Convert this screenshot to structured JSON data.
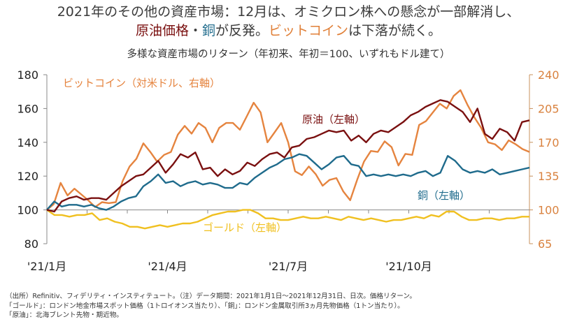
{
  "title": {
    "line1": "2021年のその他の資産市場：12月は、オミクロン株への懸念が一部解消し、",
    "line2_oil": "原油価格",
    "line2_sep": "・",
    "line2_copper": "銅",
    "line2_mid": "が反発。",
    "line2_btc": "ビットコイン",
    "line2_end": "は下落が続く。"
  },
  "subtitle": "多様な資産市場のリターン（年初来、年初＝100、いずれもドル建て）",
  "colors": {
    "oil": "#7a1010",
    "copper": "#1f6b8c",
    "bitcoin": "#e5843f",
    "gold": "#f0c020",
    "axis": "#888888",
    "right_axis": "#c8905c",
    "right_labels": "#d9823f"
  },
  "chart_data": {
    "type": "line",
    "title": "多様な資産市場のリターン（年初来、年初＝100、いずれもドル建て）",
    "x_label": "",
    "x_range": [
      "2021-01-01",
      "2021-12-31"
    ],
    "x_tick_labels": [
      "'21/1月",
      "'21/4月",
      "'21/7月",
      "'21/10月"
    ],
    "x_tick_months": 12,
    "y_left": {
      "label": "",
      "range": [
        80,
        180
      ],
      "ticks": [
        "80",
        "100",
        "120",
        "140",
        "160",
        "180"
      ]
    },
    "y_right": {
      "label": "",
      "range": [
        65,
        240
      ],
      "ticks": [
        "65",
        "100",
        "135",
        "170",
        "205",
        "240"
      ]
    },
    "frequency": "weekly (approximate readings of daily data)",
    "series": [
      {
        "name": "原油（左軸）",
        "key": "oil",
        "axis": "left",
        "label": "原油（左軸）",
        "values": [
          100,
          99,
          105,
          107,
          108,
          106,
          107,
          107,
          106,
          110,
          114,
          117,
          120,
          121,
          125,
          129,
          122,
          127,
          133,
          131,
          134,
          124,
          125,
          120,
          124,
          121,
          123,
          128,
          126,
          130,
          133,
          134,
          131,
          137,
          138,
          142,
          143,
          145,
          147,
          146,
          147,
          141,
          144,
          140,
          145,
          147,
          146,
          149,
          152,
          156,
          158,
          161,
          163,
          165,
          164,
          161,
          158,
          152,
          160,
          145,
          142,
          148,
          146,
          141,
          152,
          153
        ]
      },
      {
        "name": "銅（左軸）",
        "key": "copper",
        "axis": "left",
        "label": "銅（左軸）",
        "values": [
          100,
          105,
          102,
          103,
          103,
          102,
          103,
          101,
          100,
          102,
          105,
          107,
          108,
          114,
          117,
          121,
          116,
          117,
          114,
          116,
          117,
          115,
          116,
          115,
          113,
          113,
          116,
          115,
          119,
          122,
          125,
          127,
          130,
          131,
          133,
          132,
          128,
          124,
          127,
          131,
          132,
          127,
          126,
          120,
          121,
          120,
          121,
          120,
          121,
          120,
          122,
          123,
          120,
          122,
          132,
          129,
          124,
          122,
          123,
          122,
          124,
          121,
          122,
          123,
          124,
          125
        ]
      },
      {
        "name": "ビットコイン（対米ドル、右軸）",
        "key": "bitcoin",
        "axis": "right",
        "label": "ビットコイン（対米ドル、右軸）",
        "values": [
          100,
          106,
          128,
          115,
          122,
          116,
          110,
          103,
          108,
          107,
          108,
          130,
          145,
          153,
          169,
          160,
          150,
          157,
          160,
          178,
          187,
          179,
          190,
          185,
          170,
          185,
          190,
          190,
          183,
          197,
          211,
          201,
          170,
          180,
          190,
          170,
          140,
          136,
          145,
          137,
          125,
          131,
          133,
          119,
          110,
          131,
          150,
          161,
          160,
          171,
          165,
          146,
          158,
          157,
          188,
          192,
          201,
          210,
          205,
          218,
          224,
          209,
          196,
          185,
          170,
          168,
          162,
          172,
          168,
          163,
          160
        ]
      },
      {
        "name": "ゴールド（左軸）",
        "key": "gold",
        "axis": "left",
        "label": "ゴールド（左軸）",
        "values": [
          100,
          97,
          97,
          96,
          97,
          97,
          98,
          94,
          95,
          93,
          92,
          90,
          90,
          89,
          90,
          91,
          90,
          91,
          92,
          92,
          93,
          95,
          97,
          98,
          99,
          99,
          100,
          100,
          98,
          95,
          95,
          94,
          94,
          95,
          96,
          95,
          95,
          96,
          95,
          94,
          96,
          95,
          94,
          95,
          94,
          93,
          94,
          94,
          95,
          96,
          95,
          97,
          96,
          99,
          99,
          96,
          94,
          94,
          95,
          95,
          94,
          95,
          95,
          96,
          96
        ]
      }
    ],
    "annotations": [
      {
        "text": "ビットコイン（対米ドル、右軸）",
        "series": "bitcoin"
      },
      {
        "text": "原油（左軸）",
        "series": "oil"
      },
      {
        "text": "銅（左軸）",
        "series": "copper"
      },
      {
        "text": "ゴールド（左軸）",
        "series": "gold"
      }
    ],
    "grid": false,
    "legend": "inline labels"
  },
  "notes": {
    "line1": "（出所）Refinitiv、フィデリティ・インスティテュート。（注）データ期間：2021年1月1日～2021年12月31日、日次。価格リターン。",
    "line2": "「ゴールド」：ロンドン地金市場スポット価格（1トロイオンス当たり）、「銅」：ロンドン金属取引所3ヵ月先物価格（1トン当たり）。",
    "line3": "「原油」：北海ブレント先物・期近物。"
  }
}
